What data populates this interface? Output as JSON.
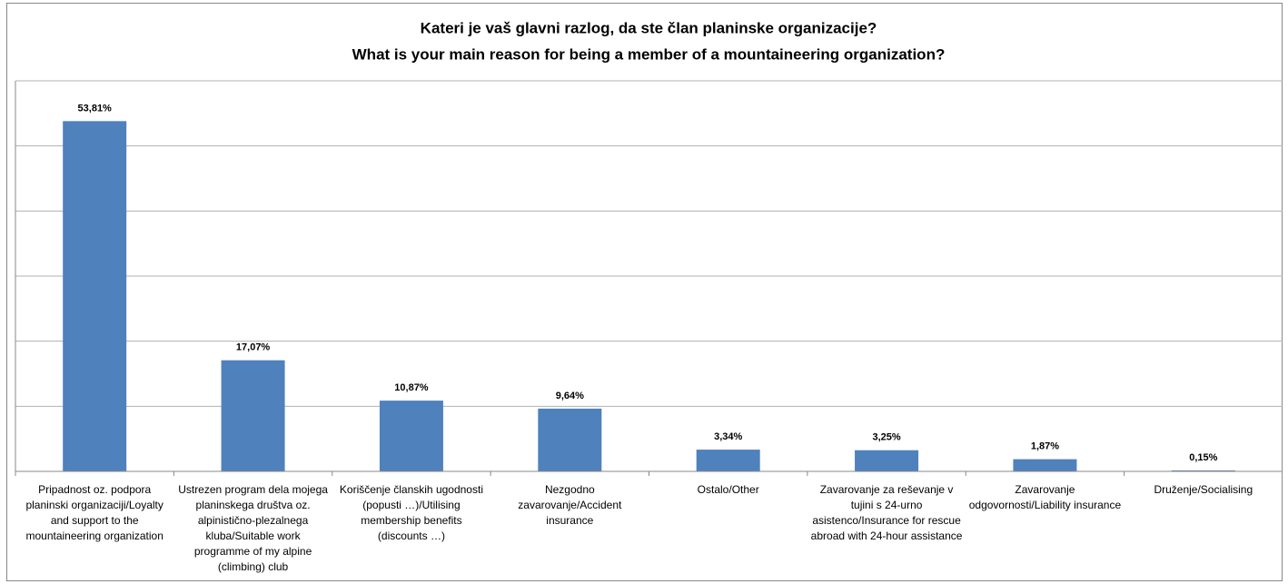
{
  "chart_data": {
    "type": "bar",
    "title": [
      "Kateri je vaš glavni razlog, da ste član planinske organizacije?",
      "What is your main reason for being a member of a mountaineering organization?"
    ],
    "categories": [
      "Pripadnost oz. podpora planinski organizaciji/Loyalty and support to the mountaineering organization",
      "Ustrezen program dela mojega planinskega društva oz. alpinistično-plezalnega kluba/Suitable work programme of my alpine (climbing) club",
      "Koriščenje članskih ugodnosti (popusti …)/Utilising membership benefits (discounts …)",
      "Nezgodno zavarovanje/Accident insurance",
      "Ostalo/Other",
      "Zavarovanje za reševanje v tujini s 24-urno asistenco/Insurance for rescue abroad with 24-hour assistance",
      "Zavarovanje odgovornosti/Liability insurance",
      "Druženje/Socialising"
    ],
    "values": [
      53.81,
      17.07,
      10.87,
      9.64,
      3.34,
      3.25,
      1.87,
      0.15
    ],
    "value_labels": [
      "53,81%",
      "17,07%",
      "10,87%",
      "9,64%",
      "3,34%",
      "3,25%",
      "1,87%",
      "0,15%"
    ],
    "color": "#4f81bd",
    "ylim": [
      0,
      60
    ],
    "yticks": [
      0,
      10,
      20,
      30,
      40,
      50,
      60
    ],
    "grid": true
  }
}
